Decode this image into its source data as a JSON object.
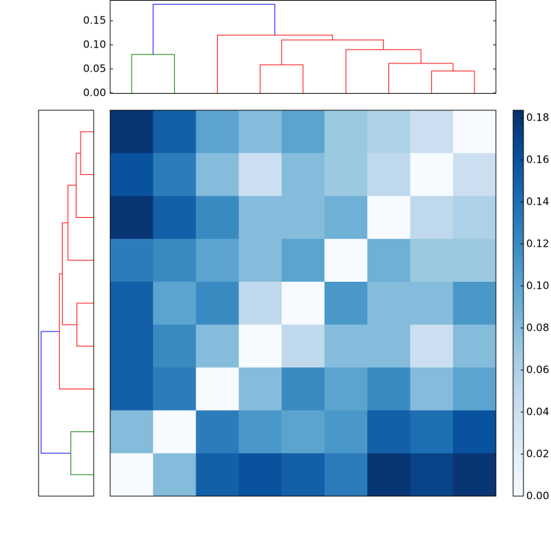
{
  "chart_data": [
    {
      "type": "dendrogram",
      "icoord": [
        [
          0,
          0,
          1,
          1
        ],
        [
          3,
          3,
          4,
          4
        ],
        [
          7,
          7,
          8,
          8
        ],
        [
          6,
          6,
          7.5,
          7.5
        ],
        [
          5,
          5,
          6.75,
          6.75
        ],
        [
          3.5,
          3.5,
          5.875,
          5.875
        ],
        [
          2,
          2,
          4.6875,
          4.6875
        ],
        [
          0.5,
          0.5,
          3.34,
          3.34
        ]
      ],
      "dcoord": [
        [
          0,
          0.08,
          0.08,
          0
        ],
        [
          0,
          0.0586,
          0.0586,
          0
        ],
        [
          0,
          0.0457,
          0.0457,
          0
        ],
        [
          0,
          0.0614,
          0.0614,
          0.0457
        ],
        [
          0,
          0.09,
          0.09,
          0.0614
        ],
        [
          0.0586,
          0.11,
          0.11,
          0.09
        ],
        [
          0,
          0.12,
          0.12,
          0.11
        ],
        [
          0.08,
          0.184,
          0.184,
          0.12
        ]
      ],
      "colors": [
        "#008000",
        "#ff0000",
        "#ff0000",
        "#ff0000",
        "#ff0000",
        "#ff0000",
        "#ff0000",
        "#0000ff"
      ],
      "xlim": [
        -0.5,
        8.5
      ],
      "ylim": [
        0,
        0.193
      ],
      "yticks": [
        {
          "value": 0,
          "label": "0.00"
        },
        {
          "value": 0.05,
          "label": "0.05"
        },
        {
          "value": 0.1,
          "label": "0.10"
        },
        {
          "value": 0.15,
          "label": "0.15"
        }
      ]
    },
    {
      "type": "heatmap",
      "values": [
        [
          0.18,
          0.15,
          0.1,
          0.08,
          0.1,
          0.07,
          0.06,
          0.04,
          0.0
        ],
        [
          0.16,
          0.13,
          0.08,
          0.04,
          0.08,
          0.07,
          0.05,
          0.0,
          0.04
        ],
        [
          0.18,
          0.15,
          0.12,
          0.08,
          0.08,
          0.09,
          0.0,
          0.05,
          0.06
        ],
        [
          0.13,
          0.12,
          0.1,
          0.08,
          0.1,
          0.0,
          0.09,
          0.07,
          0.07
        ],
        [
          0.15,
          0.1,
          0.12,
          0.05,
          0.0,
          0.11,
          0.08,
          0.08,
          0.11
        ],
        [
          0.15,
          0.12,
          0.08,
          0.0,
          0.05,
          0.08,
          0.08,
          0.04,
          0.08
        ],
        [
          0.15,
          0.13,
          0.0,
          0.08,
          0.12,
          0.1,
          0.12,
          0.08,
          0.1
        ],
        [
          0.08,
          0.0,
          0.13,
          0.11,
          0.1,
          0.11,
          0.15,
          0.14,
          0.16
        ],
        [
          0.0,
          0.08,
          0.15,
          0.16,
          0.15,
          0.13,
          0.18,
          0.17,
          0.18
        ]
      ],
      "colormap": "Blues",
      "clim": [
        0,
        0.1836
      ],
      "cticks": [
        {
          "value": 0,
          "label": "0.00"
        },
        {
          "value": 0.02,
          "label": "0.02"
        },
        {
          "value": 0.04,
          "label": "0.04"
        },
        {
          "value": 0.06,
          "label": "0.06"
        },
        {
          "value": 0.08,
          "label": "0.08"
        },
        {
          "value": 0.1,
          "label": "0.10"
        },
        {
          "value": 0.12,
          "label": "0.12"
        },
        {
          "value": 0.14,
          "label": "0.14"
        },
        {
          "value": 0.16,
          "label": "0.16"
        },
        {
          "value": 0.18,
          "label": "0.18"
        }
      ]
    }
  ]
}
